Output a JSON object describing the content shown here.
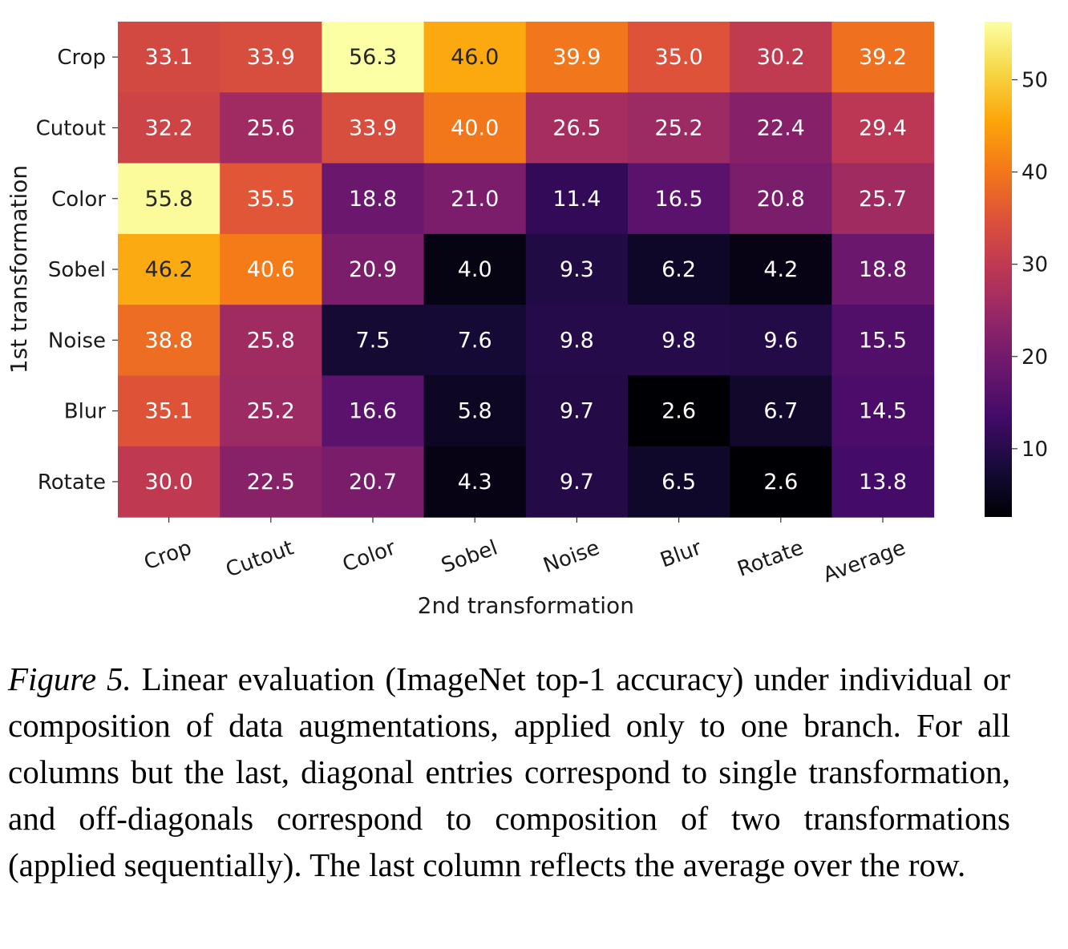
{
  "chart_data": {
    "type": "heatmap",
    "xlabel": "2nd transformation",
    "ylabel": "1st transformation",
    "x_categories": [
      "Crop",
      "Cutout",
      "Color",
      "Sobel",
      "Noise",
      "Blur",
      "Rotate",
      "Average"
    ],
    "y_categories": [
      "Crop",
      "Cutout",
      "Color",
      "Sobel",
      "Noise",
      "Blur",
      "Rotate"
    ],
    "values": [
      [
        "33.1",
        "33.9",
        "56.3",
        "46.0",
        "39.9",
        "35.0",
        "30.2",
        "39.2"
      ],
      [
        "32.2",
        "25.6",
        "33.9",
        "40.0",
        "26.5",
        "25.2",
        "22.4",
        "29.4"
      ],
      [
        "55.8",
        "35.5",
        "18.8",
        "21.0",
        "11.4",
        "16.5",
        "20.8",
        "25.7"
      ],
      [
        "46.2",
        "40.6",
        "20.9",
        "4.0",
        "9.3",
        "6.2",
        "4.2",
        "18.8"
      ],
      [
        "38.8",
        "25.8",
        "7.5",
        "7.6",
        "9.8",
        "9.8",
        "9.6",
        "15.5"
      ],
      [
        "35.1",
        "25.2",
        "16.6",
        "5.8",
        "9.7",
        "2.6",
        "6.7",
        "14.5"
      ],
      [
        "30.0",
        "22.5",
        "20.7",
        "4.3",
        "9.7",
        "6.5",
        "2.6",
        "13.8"
      ]
    ],
    "colorbar": {
      "colormap": "inferno",
      "vmin": 2.6,
      "vmax": 56.3,
      "ticks": [
        "10",
        "20",
        "30",
        "40",
        "50"
      ]
    }
  },
  "caption": {
    "label": "Figure 5.",
    "text": " Linear evaluation (ImageNet top-1 accuracy) under individual or composition of data augmentations, applied only to one branch. For all columns but the last, diagonal entries correspond to single transformation, and off-diagonals correspond to composition of two transformations (applied sequentially). The last column reflects the average over the row."
  }
}
